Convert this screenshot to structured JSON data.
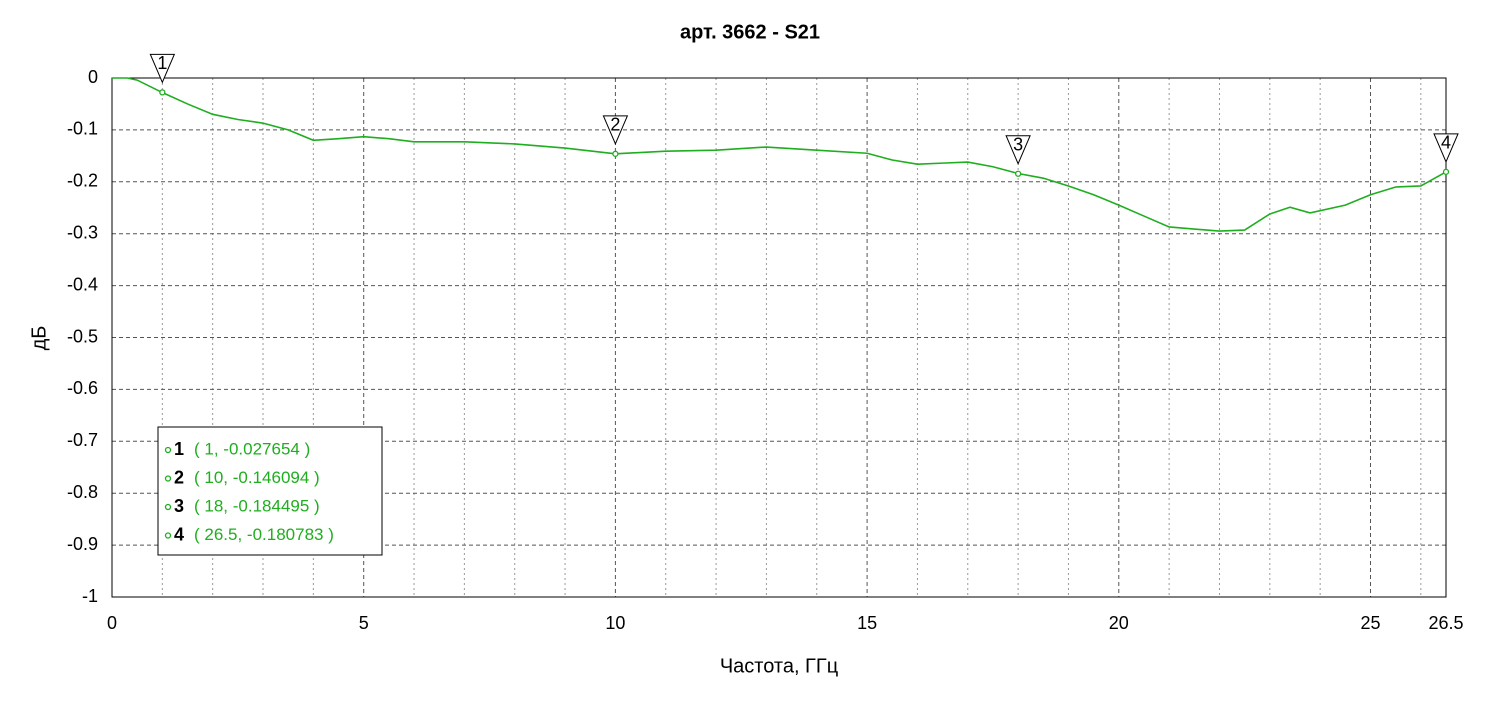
{
  "chart_data": {
    "type": "line",
    "title": "арт. 3662 - S21",
    "x_label": "Частота, ГГц",
    "y_label": "дБ",
    "xlim": [
      0,
      26.5
    ],
    "ylim": [
      -1,
      0
    ],
    "xticks": [
      0,
      5,
      10,
      15,
      20,
      25,
      26.5
    ],
    "xminorticks": [
      1,
      2,
      3,
      4,
      6,
      7,
      8,
      9,
      11,
      12,
      13,
      14,
      16,
      17,
      18,
      19,
      21,
      22,
      23,
      24,
      26
    ],
    "yticks": [
      0,
      -0.1,
      -0.2,
      -0.3,
      -0.4,
      -0.5,
      -0.6,
      -0.7,
      -0.8,
      -0.9,
      -1
    ],
    "grid": true,
    "series": [
      {
        "color": "#1fae1f",
        "x": [
          0,
          0.3,
          0.5,
          1,
          1.5,
          2,
          2.5,
          3,
          3.5,
          4,
          4.5,
          5,
          5.5,
          6,
          7,
          8,
          9,
          10,
          11,
          12,
          13,
          14,
          15,
          15.5,
          16,
          16.5,
          17,
          17.5,
          18,
          18.5,
          19,
          19.5,
          20,
          20.5,
          21,
          21.5,
          22,
          22.5,
          23,
          23.4,
          23.8,
          24.5,
          25,
          25.5,
          26,
          26.5
        ],
        "values": [
          0,
          0,
          -0.004,
          -0.028,
          -0.05,
          -0.07,
          -0.08,
          -0.087,
          -0.1,
          -0.12,
          -0.117,
          -0.113,
          -0.117,
          -0.123,
          -0.123,
          -0.127,
          -0.135,
          -0.146,
          -0.141,
          -0.139,
          -0.133,
          -0.139,
          -0.145,
          -0.158,
          -0.166,
          -0.164,
          -0.162,
          -0.171,
          -0.184,
          -0.193,
          -0.208,
          -0.225,
          -0.245,
          -0.266,
          -0.287,
          -0.291,
          -0.295,
          -0.293,
          -0.262,
          -0.249,
          -0.26,
          -0.245,
          -0.225,
          -0.21,
          -0.208,
          -0.181
        ]
      }
    ],
    "markers": [
      {
        "label": "1",
        "x": 1,
        "y": -0.027654,
        "text": "( 1, -0.027654 )"
      },
      {
        "label": "2",
        "x": 10,
        "y": -0.146094,
        "text": "( 10, -0.146094 )"
      },
      {
        "label": "3",
        "x": 18,
        "y": -0.184495,
        "text": "( 18, -0.184495 )"
      },
      {
        "label": "4",
        "x": 26.5,
        "y": -0.180783,
        "text": "( 26.5, -0.180783 )"
      }
    ]
  }
}
